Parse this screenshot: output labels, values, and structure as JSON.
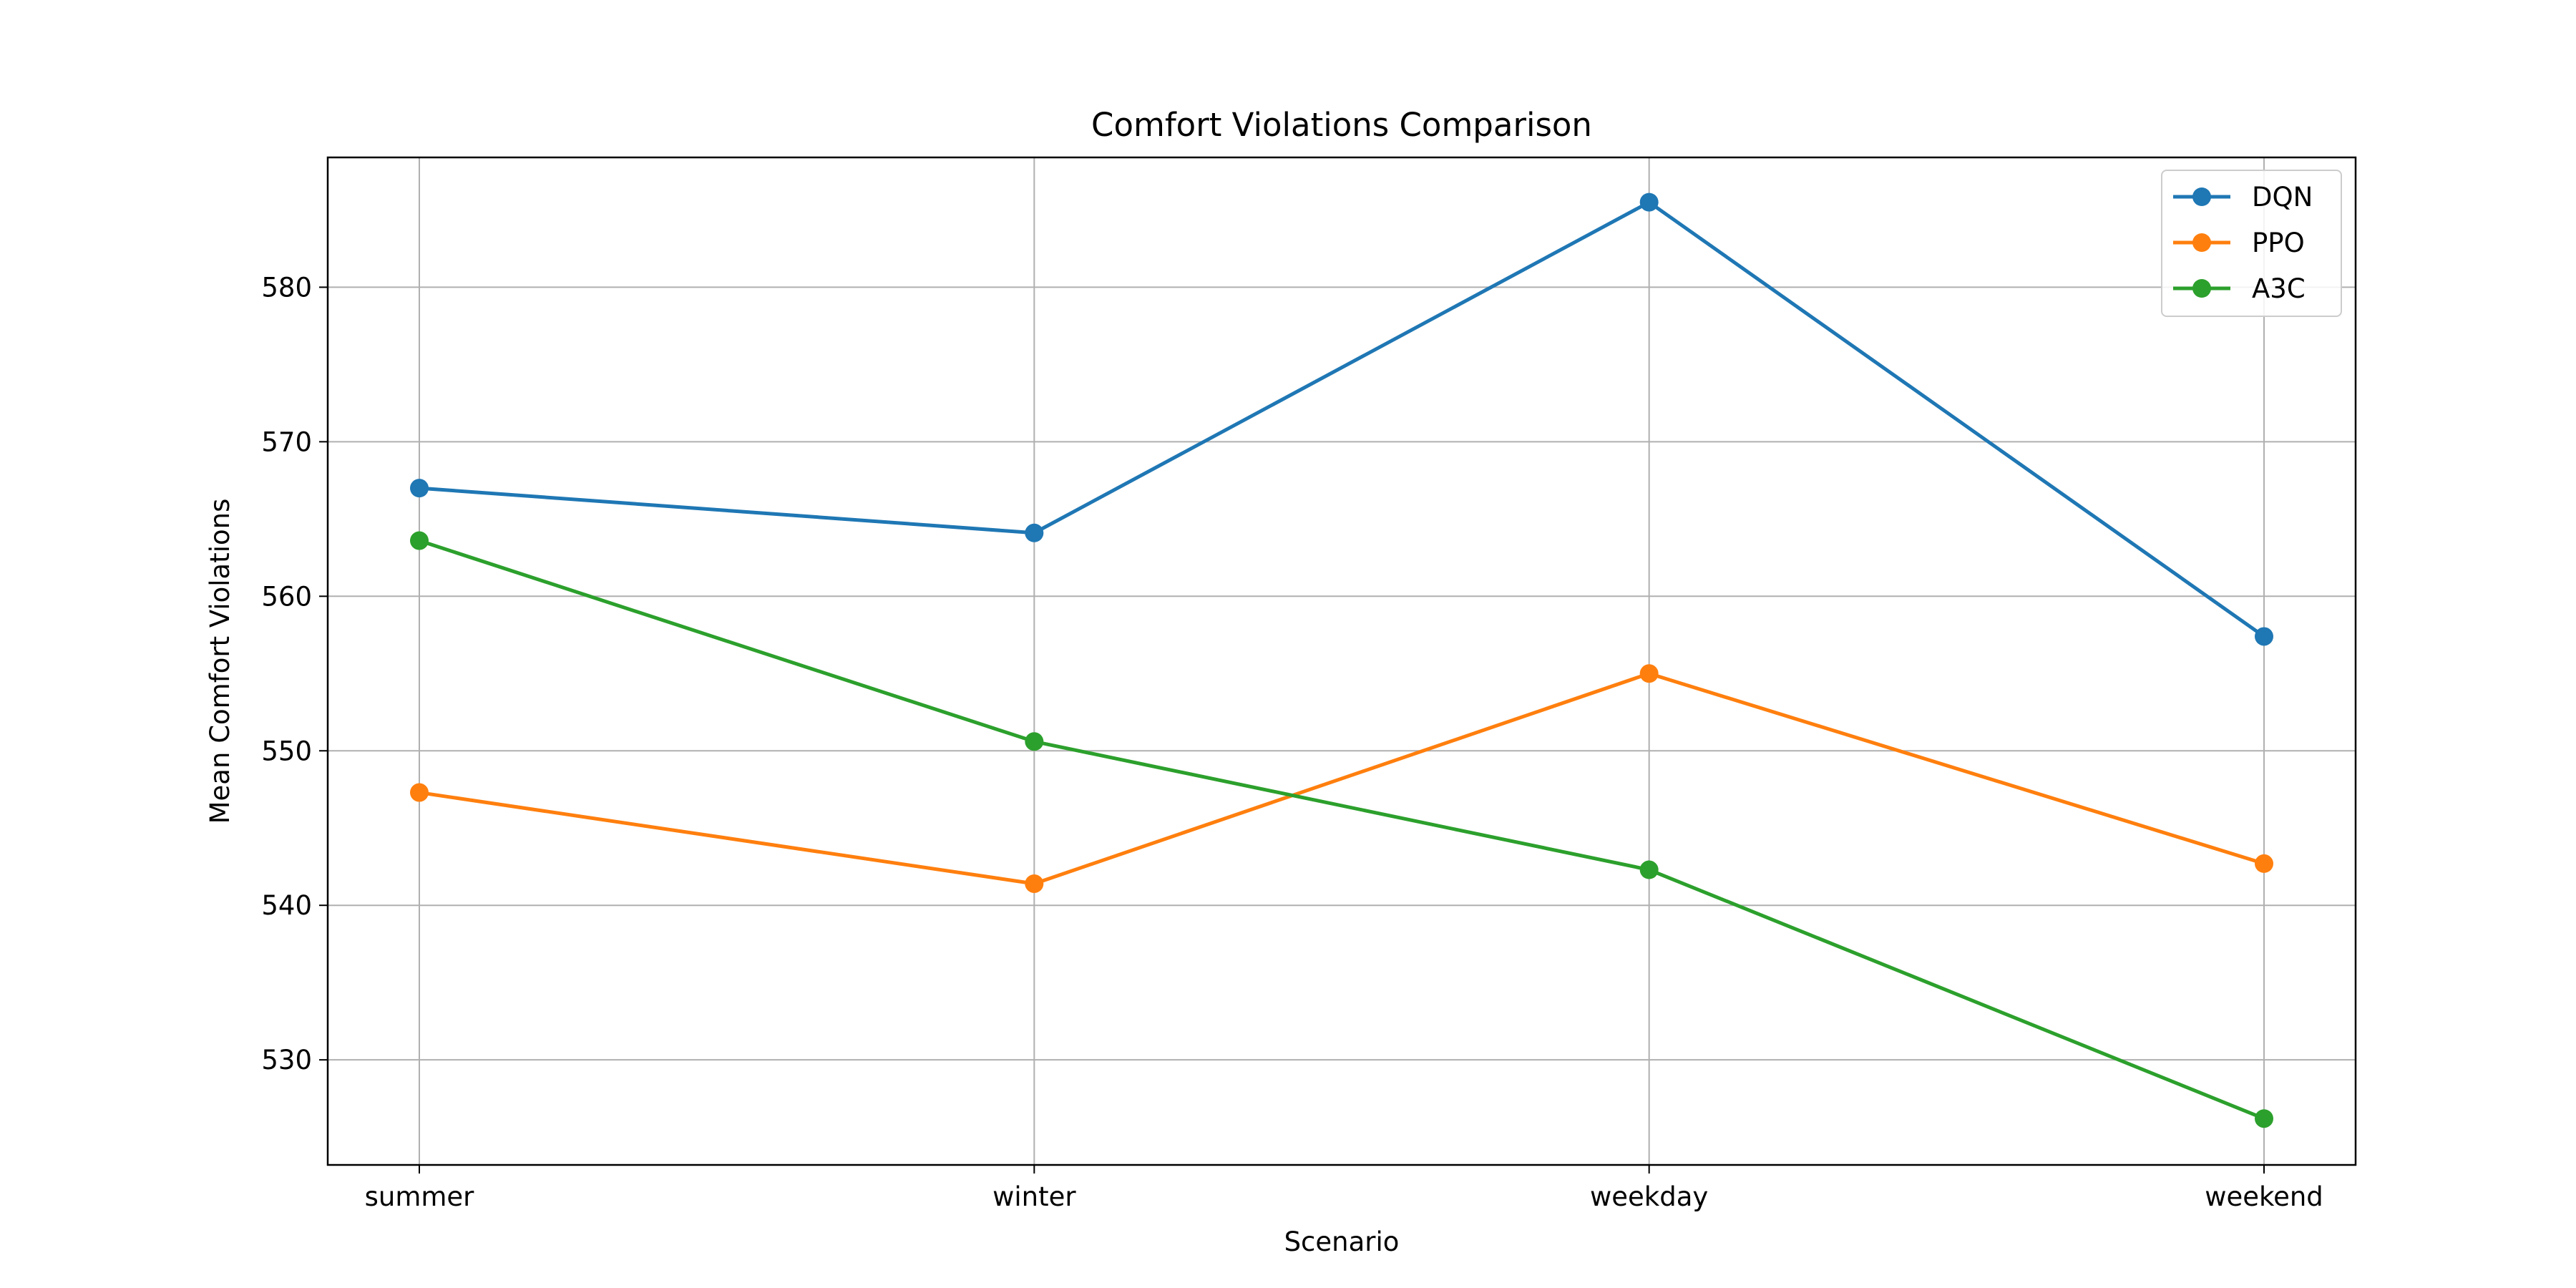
{
  "chart_data": {
    "type": "line",
    "title": "Comfort Violations Comparison",
    "xlabel": "Scenario",
    "ylabel": "Mean Comfort Violations",
    "categories": [
      "summer",
      "winter",
      "weekday",
      "weekend"
    ],
    "ylim": [
      523.2,
      588.4
    ],
    "yticks": [
      530,
      540,
      550,
      560,
      570,
      580
    ],
    "grid": true,
    "legend_position": "top-right",
    "series": [
      {
        "name": "DQN",
        "color": "#1f77b4",
        "values": [
          567.0,
          564.1,
          585.5,
          557.4
        ]
      },
      {
        "name": "PPO",
        "color": "#ff7f0e",
        "values": [
          547.3,
          541.4,
          555.0,
          542.7
        ]
      },
      {
        "name": "A3C",
        "color": "#2ca02c",
        "values": [
          563.6,
          550.6,
          542.3,
          526.2
        ]
      }
    ]
  }
}
